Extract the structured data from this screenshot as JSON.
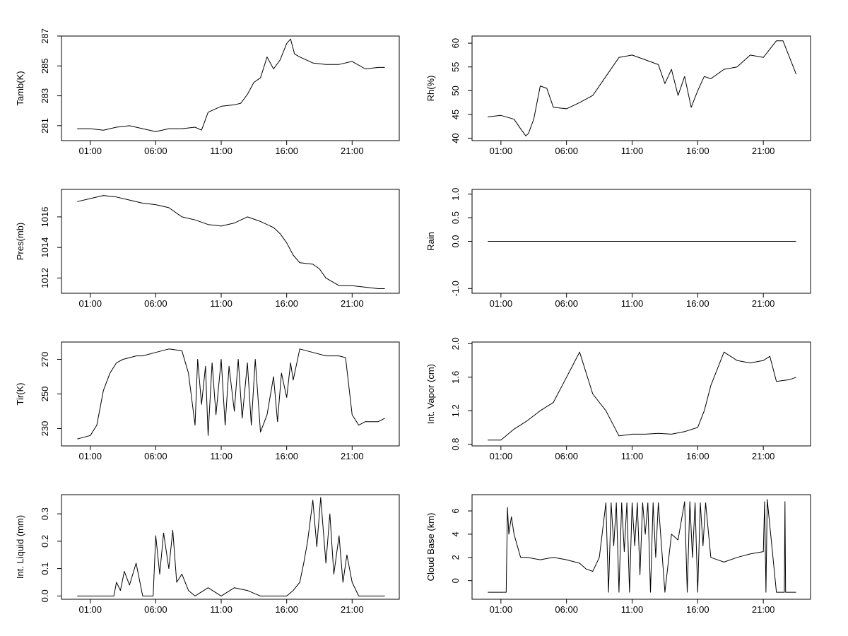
{
  "chart_data": [
    {
      "type": "line",
      "ylabel": "Tamb(K)",
      "ylim": [
        280,
        287
      ],
      "yticks": [
        281,
        283,
        285,
        287
      ],
      "xticks": [
        "01:00",
        "06:00",
        "11:00",
        "16:00",
        "21:00"
      ],
      "x": [
        0,
        1,
        2,
        3,
        4,
        5,
        6,
        7,
        8,
        9,
        9.5,
        10,
        11,
        12,
        12.5,
        13,
        13.5,
        14,
        14.5,
        15,
        15.5,
        16,
        16.3,
        16.6,
        17,
        18,
        19,
        20,
        21,
        22,
        23,
        23.5
      ],
      "values": [
        280.8,
        280.8,
        280.7,
        280.9,
        281.0,
        280.8,
        280.6,
        280.8,
        280.8,
        280.9,
        280.7,
        281.9,
        282.3,
        282.4,
        282.5,
        283.1,
        283.9,
        284.2,
        285.6,
        284.8,
        285.4,
        286.5,
        286.8,
        285.8,
        285.6,
        285.2,
        285.1,
        285.1,
        285.3,
        284.8,
        284.9,
        284.9
      ]
    },
    {
      "type": "line",
      "ylabel": "Rh(%)",
      "ylim": [
        39.5,
        61.5
      ],
      "yticks": [
        40,
        45,
        50,
        55,
        60
      ],
      "xticks": [
        "01:00",
        "06:00",
        "11:00",
        "16:00",
        "21:00"
      ],
      "x": [
        0,
        1,
        2,
        2.5,
        2.9,
        3.1,
        3.5,
        4,
        4.5,
        5,
        6,
        7,
        8,
        9,
        10,
        11,
        12,
        13,
        13.5,
        14,
        14.5,
        15,
        15.5,
        16,
        16.5,
        17,
        18,
        19,
        20,
        21,
        22,
        22.5,
        23,
        23.5
      ],
      "values": [
        44.5,
        44.8,
        44.0,
        42.0,
        40.5,
        41.0,
        44.0,
        51.0,
        50.5,
        46.5,
        46.2,
        47.5,
        49.0,
        53.0,
        57.0,
        57.5,
        56.5,
        55.5,
        51.5,
        54.5,
        49.0,
        53.0,
        46.5,
        50.0,
        53.0,
        52.5,
        54.5,
        55.0,
        57.5,
        57.0,
        60.5,
        60.5,
        57.0,
        53.5
      ]
    },
    {
      "type": "line",
      "ylabel": "Pres(mb)",
      "ylim": [
        1011,
        1017.8
      ],
      "yticks": [
        1012,
        1014,
        1016
      ],
      "ytick_labels": [
        "1012",
        "1014",
        "1016"
      ],
      "xticks": [
        "01:00",
        "06:00",
        "11:00",
        "16:00",
        "21:00"
      ],
      "x": [
        0,
        1,
        2,
        3,
        4,
        5,
        6,
        7,
        8,
        9,
        10,
        11,
        12,
        13,
        14,
        15,
        15.5,
        16,
        16.5,
        17,
        18,
        18.5,
        19,
        20,
        21,
        22,
        23,
        23.5
      ],
      "values": [
        1017.0,
        1017.2,
        1017.4,
        1017.3,
        1017.1,
        1016.9,
        1016.8,
        1016.6,
        1016.0,
        1015.8,
        1015.5,
        1015.4,
        1015.6,
        1016.0,
        1015.7,
        1015.3,
        1014.9,
        1014.3,
        1013.5,
        1013.0,
        1012.9,
        1012.6,
        1012.0,
        1011.5,
        1011.5,
        1011.4,
        1011.3,
        1011.3
      ]
    },
    {
      "type": "line",
      "ylabel": "Rain",
      "ylim": [
        -1.1,
        1.1
      ],
      "yticks": [
        -1.0,
        0.0,
        0.5,
        1.0
      ],
      "ytick_labels": [
        "-1.0",
        "0.0",
        "0.5",
        "1.0"
      ],
      "xticks": [
        "01:00",
        "06:00",
        "11:00",
        "16:00",
        "21:00"
      ],
      "x": [
        0,
        23.5
      ],
      "values": [
        0,
        0
      ]
    },
    {
      "type": "line",
      "ylabel": "Tir(K)",
      "ylim": [
        220,
        280
      ],
      "yticks": [
        230,
        250,
        270
      ],
      "xticks": [
        "01:00",
        "06:00",
        "11:00",
        "16:00",
        "21:00"
      ],
      "x": [
        0,
        1,
        1.5,
        2,
        2.5,
        3,
        3.5,
        4,
        4.5,
        5,
        6,
        7,
        8,
        8.5,
        9,
        9.2,
        9.5,
        9.8,
        10,
        10.3,
        10.6,
        11,
        11.3,
        11.6,
        12,
        12.3,
        12.6,
        13,
        13.3,
        13.6,
        14,
        14.5,
        15,
        15.3,
        15.6,
        16,
        16.3,
        16.5,
        17,
        17.5,
        18,
        19,
        20,
        20.5,
        21,
        21.5,
        22,
        23,
        23.5
      ],
      "values": [
        224,
        226,
        232,
        252,
        262,
        268,
        270,
        271,
        272,
        272,
        274,
        276,
        275,
        262,
        232,
        270,
        244,
        266,
        226,
        268,
        238,
        270,
        232,
        266,
        240,
        270,
        236,
        268,
        232,
        270,
        228,
        238,
        260,
        234,
        262,
        248,
        268,
        258,
        276,
        275,
        274,
        272,
        272,
        271,
        238,
        232,
        234,
        234,
        236
      ]
    },
    {
      "type": "line",
      "ylabel": "Int. Vapor (cm)",
      "ylim": [
        0.78,
        2.02
      ],
      "yticks": [
        0.8,
        1.2,
        1.6,
        2.0
      ],
      "ytick_labels": [
        "0.8",
        "1.2",
        "1.6",
        "2.0"
      ],
      "xticks": [
        "01:00",
        "06:00",
        "11:00",
        "16:00",
        "21:00"
      ],
      "x": [
        0,
        1,
        2,
        3,
        4,
        5,
        6,
        6.5,
        7,
        8,
        9,
        10,
        11,
        12,
        13,
        14,
        15,
        16,
        16.5,
        17,
        18,
        19,
        20,
        21,
        21.5,
        22,
        23,
        23.5
      ],
      "values": [
        0.85,
        0.85,
        0.98,
        1.08,
        1.2,
        1.3,
        1.6,
        1.75,
        1.9,
        1.4,
        1.2,
        0.9,
        0.92,
        0.92,
        0.93,
        0.92,
        0.95,
        1.0,
        1.2,
        1.5,
        1.9,
        1.8,
        1.77,
        1.8,
        1.85,
        1.55,
        1.57,
        1.6
      ]
    },
    {
      "type": "line",
      "ylabel": "Int. Liquid (mm)",
      "ylim": [
        -0.012,
        0.37
      ],
      "yticks": [
        0.0,
        0.1,
        0.2,
        0.3
      ],
      "ytick_labels": [
        "0.0",
        "0.1",
        "0.2",
        "0.3"
      ],
      "xticks": [
        "01:00",
        "06:00",
        "11:00",
        "16:00",
        "21:00"
      ],
      "x": [
        0,
        1,
        2,
        2.8,
        3,
        3.3,
        3.6,
        4,
        4.5,
        5,
        5.8,
        6,
        6.3,
        6.6,
        7,
        7.3,
        7.6,
        8,
        8.5,
        9,
        10,
        11,
        12,
        13,
        14,
        15,
        16,
        16.5,
        17,
        17.3,
        17.6,
        18,
        18.3,
        18.6,
        19,
        19.3,
        19.6,
        20,
        20.3,
        20.6,
        21,
        21.5,
        22,
        23,
        23.5
      ],
      "values": [
        0,
        0,
        0,
        0,
        0.05,
        0.02,
        0.09,
        0.04,
        0.12,
        0,
        0,
        0.22,
        0.08,
        0.23,
        0.1,
        0.24,
        0.05,
        0.08,
        0.02,
        0,
        0.03,
        0,
        0.03,
        0.02,
        0,
        0,
        0,
        0.02,
        0.05,
        0.12,
        0.2,
        0.35,
        0.18,
        0.36,
        0.12,
        0.3,
        0.08,
        0.22,
        0.05,
        0.15,
        0.05,
        0,
        0,
        0,
        0
      ]
    },
    {
      "type": "line",
      "ylabel": "Cloud Base (km)",
      "ylim": [
        -1.6,
        7.4
      ],
      "yticks": [
        0,
        2,
        4,
        6
      ],
      "xticks": [
        "01:00",
        "06:00",
        "11:00",
        "16:00",
        "21:00"
      ],
      "x": [
        0,
        1.4,
        1.5,
        1.6,
        1.8,
        2,
        2.5,
        3,
        4,
        4.5,
        5,
        6,
        7,
        7.5,
        8,
        8.5,
        9,
        9.2,
        9.4,
        9.6,
        9.8,
        10,
        10.2,
        10.4,
        10.6,
        10.8,
        11,
        11.2,
        11.4,
        11.6,
        11.8,
        12,
        12.2,
        12.4,
        12.6,
        12.8,
        13,
        13.5,
        14,
        14.5,
        15,
        15.2,
        15.4,
        15.6,
        15.8,
        16,
        16.2,
        16.4,
        16.6,
        17,
        18,
        19,
        20,
        21,
        21.1,
        21.2,
        21.3,
        22,
        22.6,
        22.65,
        22.7,
        23,
        23.5
      ],
      "values": [
        -1,
        -1,
        6.3,
        4.0,
        5.5,
        4.0,
        2.0,
        2.0,
        1.8,
        1.9,
        2.0,
        1.8,
        1.5,
        1.0,
        0.8,
        2.0,
        6.7,
        -1,
        6.7,
        3.0,
        6.7,
        -1,
        6.7,
        2.5,
        6.7,
        -1,
        6.7,
        3.0,
        6.7,
        0.5,
        6.7,
        4.0,
        6.7,
        -1,
        6.7,
        2.0,
        6.7,
        -1,
        4.0,
        3.5,
        6.8,
        -1,
        6.8,
        2.0,
        6.7,
        -1,
        6.7,
        3.0,
        6.7,
        2.0,
        1.6,
        2.0,
        2.3,
        2.5,
        6.8,
        -1,
        7.0,
        -1,
        -1,
        6.8,
        -1,
        -1,
        -1
      ]
    }
  ]
}
